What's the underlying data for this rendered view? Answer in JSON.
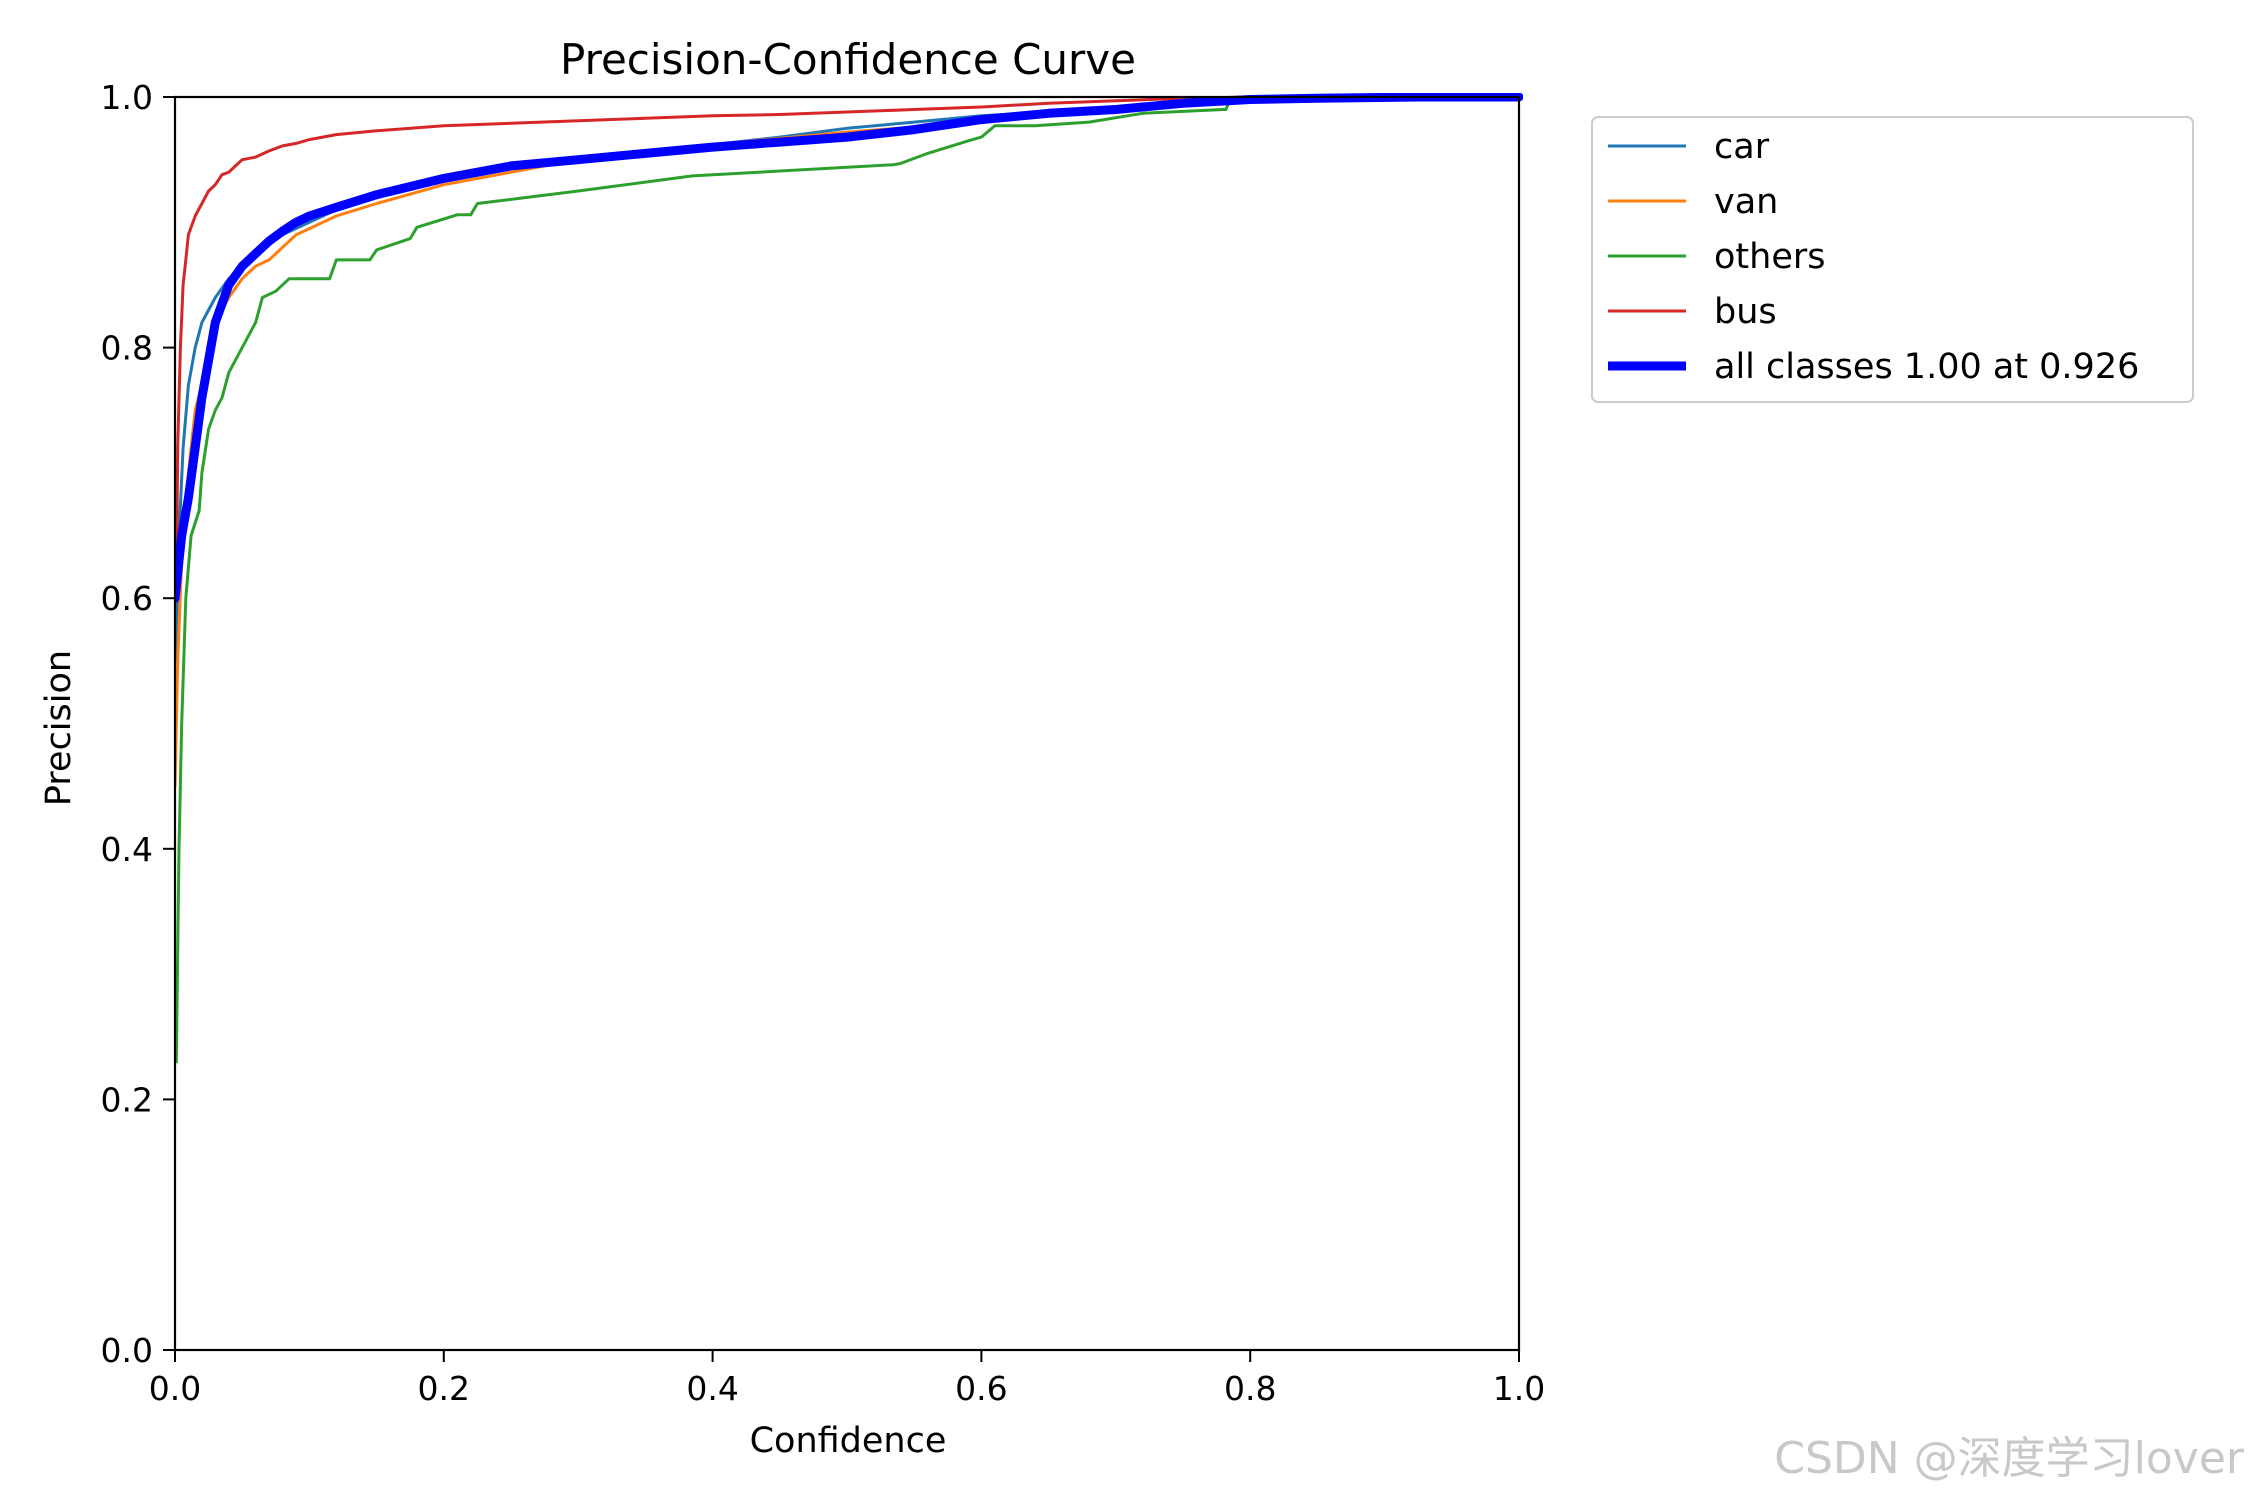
{
  "chart_data": {
    "type": "line",
    "title": "Precision-Confidence Curve",
    "xlabel": "Confidence",
    "ylabel": "Precision",
    "xlim": [
      0,
      1
    ],
    "ylim": [
      0,
      1
    ],
    "xticks": [
      "0.0",
      "0.2",
      "0.4",
      "0.6",
      "0.8",
      "1.0"
    ],
    "yticks": [
      "0.0",
      "0.2",
      "0.4",
      "0.6",
      "0.8",
      "1.0"
    ],
    "grid": false,
    "legend_position": "outside upper right",
    "series": [
      {
        "name": "car",
        "color": "#1f77b4",
        "width": "thin",
        "points": [
          [
            0.001,
            0.55
          ],
          [
            0.003,
            0.65
          ],
          [
            0.006,
            0.72
          ],
          [
            0.01,
            0.77
          ],
          [
            0.015,
            0.8
          ],
          [
            0.02,
            0.82
          ],
          [
            0.03,
            0.84
          ],
          [
            0.04,
            0.855
          ],
          [
            0.05,
            0.865
          ],
          [
            0.06,
            0.875
          ],
          [
            0.08,
            0.89
          ],
          [
            0.1,
            0.9
          ],
          [
            0.12,
            0.91
          ],
          [
            0.15,
            0.92
          ],
          [
            0.2,
            0.935
          ],
          [
            0.25,
            0.945
          ],
          [
            0.3,
            0.95
          ],
          [
            0.35,
            0.955
          ],
          [
            0.4,
            0.962
          ],
          [
            0.45,
            0.968
          ],
          [
            0.5,
            0.975
          ],
          [
            0.55,
            0.98
          ],
          [
            0.6,
            0.985
          ],
          [
            0.65,
            0.988
          ],
          [
            0.7,
            0.992
          ],
          [
            0.75,
            0.995
          ],
          [
            0.8,
            0.998
          ],
          [
            0.85,
            1.0
          ],
          [
            1.0,
            1.0
          ]
        ]
      },
      {
        "name": "van",
        "color": "#ff7f0e",
        "width": "thin",
        "points": [
          [
            0.0,
            0.45
          ],
          [
            0.002,
            0.55
          ],
          [
            0.005,
            0.63
          ],
          [
            0.01,
            0.7
          ],
          [
            0.015,
            0.75
          ],
          [
            0.02,
            0.77
          ],
          [
            0.025,
            0.8
          ],
          [
            0.03,
            0.82
          ],
          [
            0.04,
            0.84
          ],
          [
            0.05,
            0.855
          ],
          [
            0.06,
            0.865
          ],
          [
            0.07,
            0.87
          ],
          [
            0.08,
            0.88
          ],
          [
            0.09,
            0.89
          ],
          [
            0.1,
            0.895
          ],
          [
            0.11,
            0.9
          ],
          [
            0.12,
            0.905
          ],
          [
            0.15,
            0.915
          ],
          [
            0.2,
            0.93
          ],
          [
            0.3,
            0.95
          ],
          [
            0.4,
            0.962
          ],
          [
            0.5,
            0.972
          ],
          [
            0.6,
            0.98
          ],
          [
            0.7,
            0.99
          ],
          [
            0.8,
            0.998
          ],
          [
            0.85,
            1.0
          ],
          [
            1.0,
            1.0
          ]
        ]
      },
      {
        "name": "others",
        "color": "#2ca02c",
        "width": "thin",
        "points": [
          [
            0.001,
            0.23
          ],
          [
            0.003,
            0.4
          ],
          [
            0.005,
            0.5
          ],
          [
            0.008,
            0.6
          ],
          [
            0.012,
            0.65
          ],
          [
            0.018,
            0.67
          ],
          [
            0.02,
            0.7
          ],
          [
            0.025,
            0.735
          ],
          [
            0.03,
            0.75
          ],
          [
            0.035,
            0.76
          ],
          [
            0.04,
            0.78
          ],
          [
            0.045,
            0.79
          ],
          [
            0.05,
            0.8
          ],
          [
            0.055,
            0.81
          ],
          [
            0.06,
            0.82
          ],
          [
            0.065,
            0.84
          ],
          [
            0.075,
            0.845
          ],
          [
            0.085,
            0.855
          ],
          [
            0.115,
            0.855
          ],
          [
            0.12,
            0.87
          ],
          [
            0.145,
            0.87
          ],
          [
            0.15,
            0.878
          ],
          [
            0.175,
            0.887
          ],
          [
            0.18,
            0.896
          ],
          [
            0.21,
            0.906
          ],
          [
            0.22,
            0.906
          ],
          [
            0.225,
            0.915
          ],
          [
            0.3,
            0.925
          ],
          [
            0.385,
            0.937
          ],
          [
            0.535,
            0.946
          ],
          [
            0.54,
            0.947
          ],
          [
            0.56,
            0.955
          ],
          [
            0.59,
            0.965
          ],
          [
            0.6,
            0.968
          ],
          [
            0.61,
            0.977
          ],
          [
            0.64,
            0.977
          ],
          [
            0.68,
            0.98
          ],
          [
            0.72,
            0.987
          ],
          [
            0.78,
            0.99
          ],
          [
            0.782,
            0.99
          ],
          [
            0.785,
            0.998
          ],
          [
            0.8,
            0.999
          ],
          [
            1.0,
            1.0
          ]
        ]
      },
      {
        "name": "bus",
        "color": "#d62728",
        "width": "thin",
        "points": [
          [
            0.001,
            0.6
          ],
          [
            0.002,
            0.72
          ],
          [
            0.004,
            0.8
          ],
          [
            0.006,
            0.85
          ],
          [
            0.008,
            0.87
          ],
          [
            0.01,
            0.89
          ],
          [
            0.015,
            0.905
          ],
          [
            0.02,
            0.915
          ],
          [
            0.025,
            0.925
          ],
          [
            0.03,
            0.93
          ],
          [
            0.035,
            0.938
          ],
          [
            0.04,
            0.94
          ],
          [
            0.045,
            0.945
          ],
          [
            0.05,
            0.95
          ],
          [
            0.06,
            0.952
          ],
          [
            0.07,
            0.957
          ],
          [
            0.08,
            0.961
          ],
          [
            0.09,
            0.963
          ],
          [
            0.1,
            0.966
          ],
          [
            0.11,
            0.968
          ],
          [
            0.12,
            0.97
          ],
          [
            0.15,
            0.973
          ],
          [
            0.2,
            0.977
          ],
          [
            0.25,
            0.979
          ],
          [
            0.3,
            0.981
          ],
          [
            0.35,
            0.983
          ],
          [
            0.4,
            0.985
          ],
          [
            0.45,
            0.986
          ],
          [
            0.5,
            0.988
          ],
          [
            0.55,
            0.99
          ],
          [
            0.6,
            0.992
          ],
          [
            0.65,
            0.995
          ],
          [
            0.7,
            0.997
          ],
          [
            0.75,
            0.999
          ],
          [
            0.8,
            1.0
          ],
          [
            1.0,
            1.0
          ]
        ]
      },
      {
        "name": "all classes 1.00 at 0.926",
        "color": "#0000ff",
        "width": "thick",
        "points": [
          [
            0.0,
            0.6
          ],
          [
            0.005,
            0.65
          ],
          [
            0.01,
            0.68
          ],
          [
            0.015,
            0.72
          ],
          [
            0.02,
            0.76
          ],
          [
            0.025,
            0.79
          ],
          [
            0.03,
            0.82
          ],
          [
            0.035,
            0.835
          ],
          [
            0.04,
            0.85
          ],
          [
            0.05,
            0.865
          ],
          [
            0.06,
            0.875
          ],
          [
            0.07,
            0.885
          ],
          [
            0.08,
            0.893
          ],
          [
            0.09,
            0.9
          ],
          [
            0.1,
            0.905
          ],
          [
            0.12,
            0.912
          ],
          [
            0.15,
            0.922
          ],
          [
            0.2,
            0.935
          ],
          [
            0.25,
            0.945
          ],
          [
            0.3,
            0.95
          ],
          [
            0.35,
            0.955
          ],
          [
            0.4,
            0.96
          ],
          [
            0.45,
            0.964
          ],
          [
            0.5,
            0.968
          ],
          [
            0.55,
            0.974
          ],
          [
            0.6,
            0.982
          ],
          [
            0.65,
            0.987
          ],
          [
            0.7,
            0.99
          ],
          [
            0.75,
            0.995
          ],
          [
            0.8,
            0.998
          ],
          [
            0.85,
            0.999
          ],
          [
            0.926,
            1.0
          ],
          [
            1.0,
            1.0
          ]
        ]
      }
    ]
  },
  "watermark": "CSDN @深度学习lover"
}
